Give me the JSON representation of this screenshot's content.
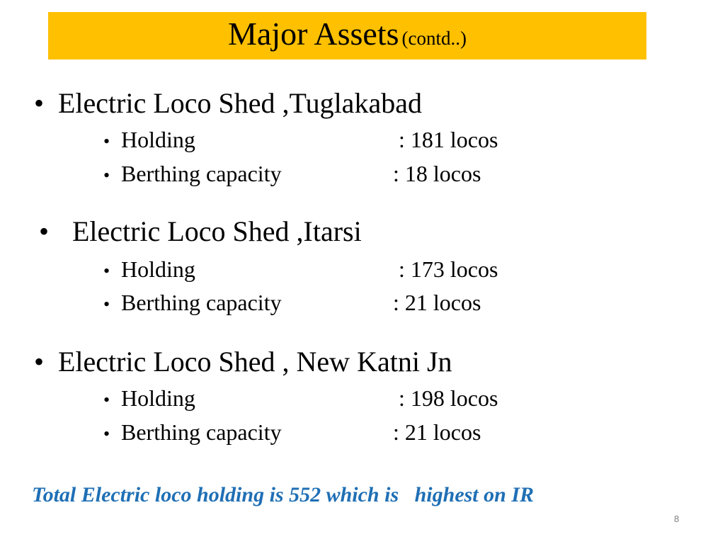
{
  "title": {
    "main": "Major Assets",
    "sub": "(contd..)"
  },
  "bullet_glyph": "•",
  "sheds": [
    {
      "name": "Electric Loco Shed ,Tuglakabad",
      "items": [
        {
          "label": "Holding",
          "value": ": 181 locos"
        },
        {
          "label": "Berthing capacity",
          "value": ":   18 locos"
        }
      ]
    },
    {
      "name": "Electric Loco Shed ,Itarsi",
      "items": [
        {
          "label": "Holding",
          "value": ": 173 locos"
        },
        {
          "label": "Berthing capacity",
          "value": ":   21 locos"
        }
      ]
    },
    {
      "name": "Electric Loco Shed , New Katni Jn",
      "items": [
        {
          "label": "Holding",
          "value": ": 198 locos"
        },
        {
          "label": "Berthing capacity",
          "value": ":  21  locos"
        }
      ]
    }
  ],
  "total_note": "Total Electric loco holding is 552 which is   highest on IR",
  "page_number": "8"
}
